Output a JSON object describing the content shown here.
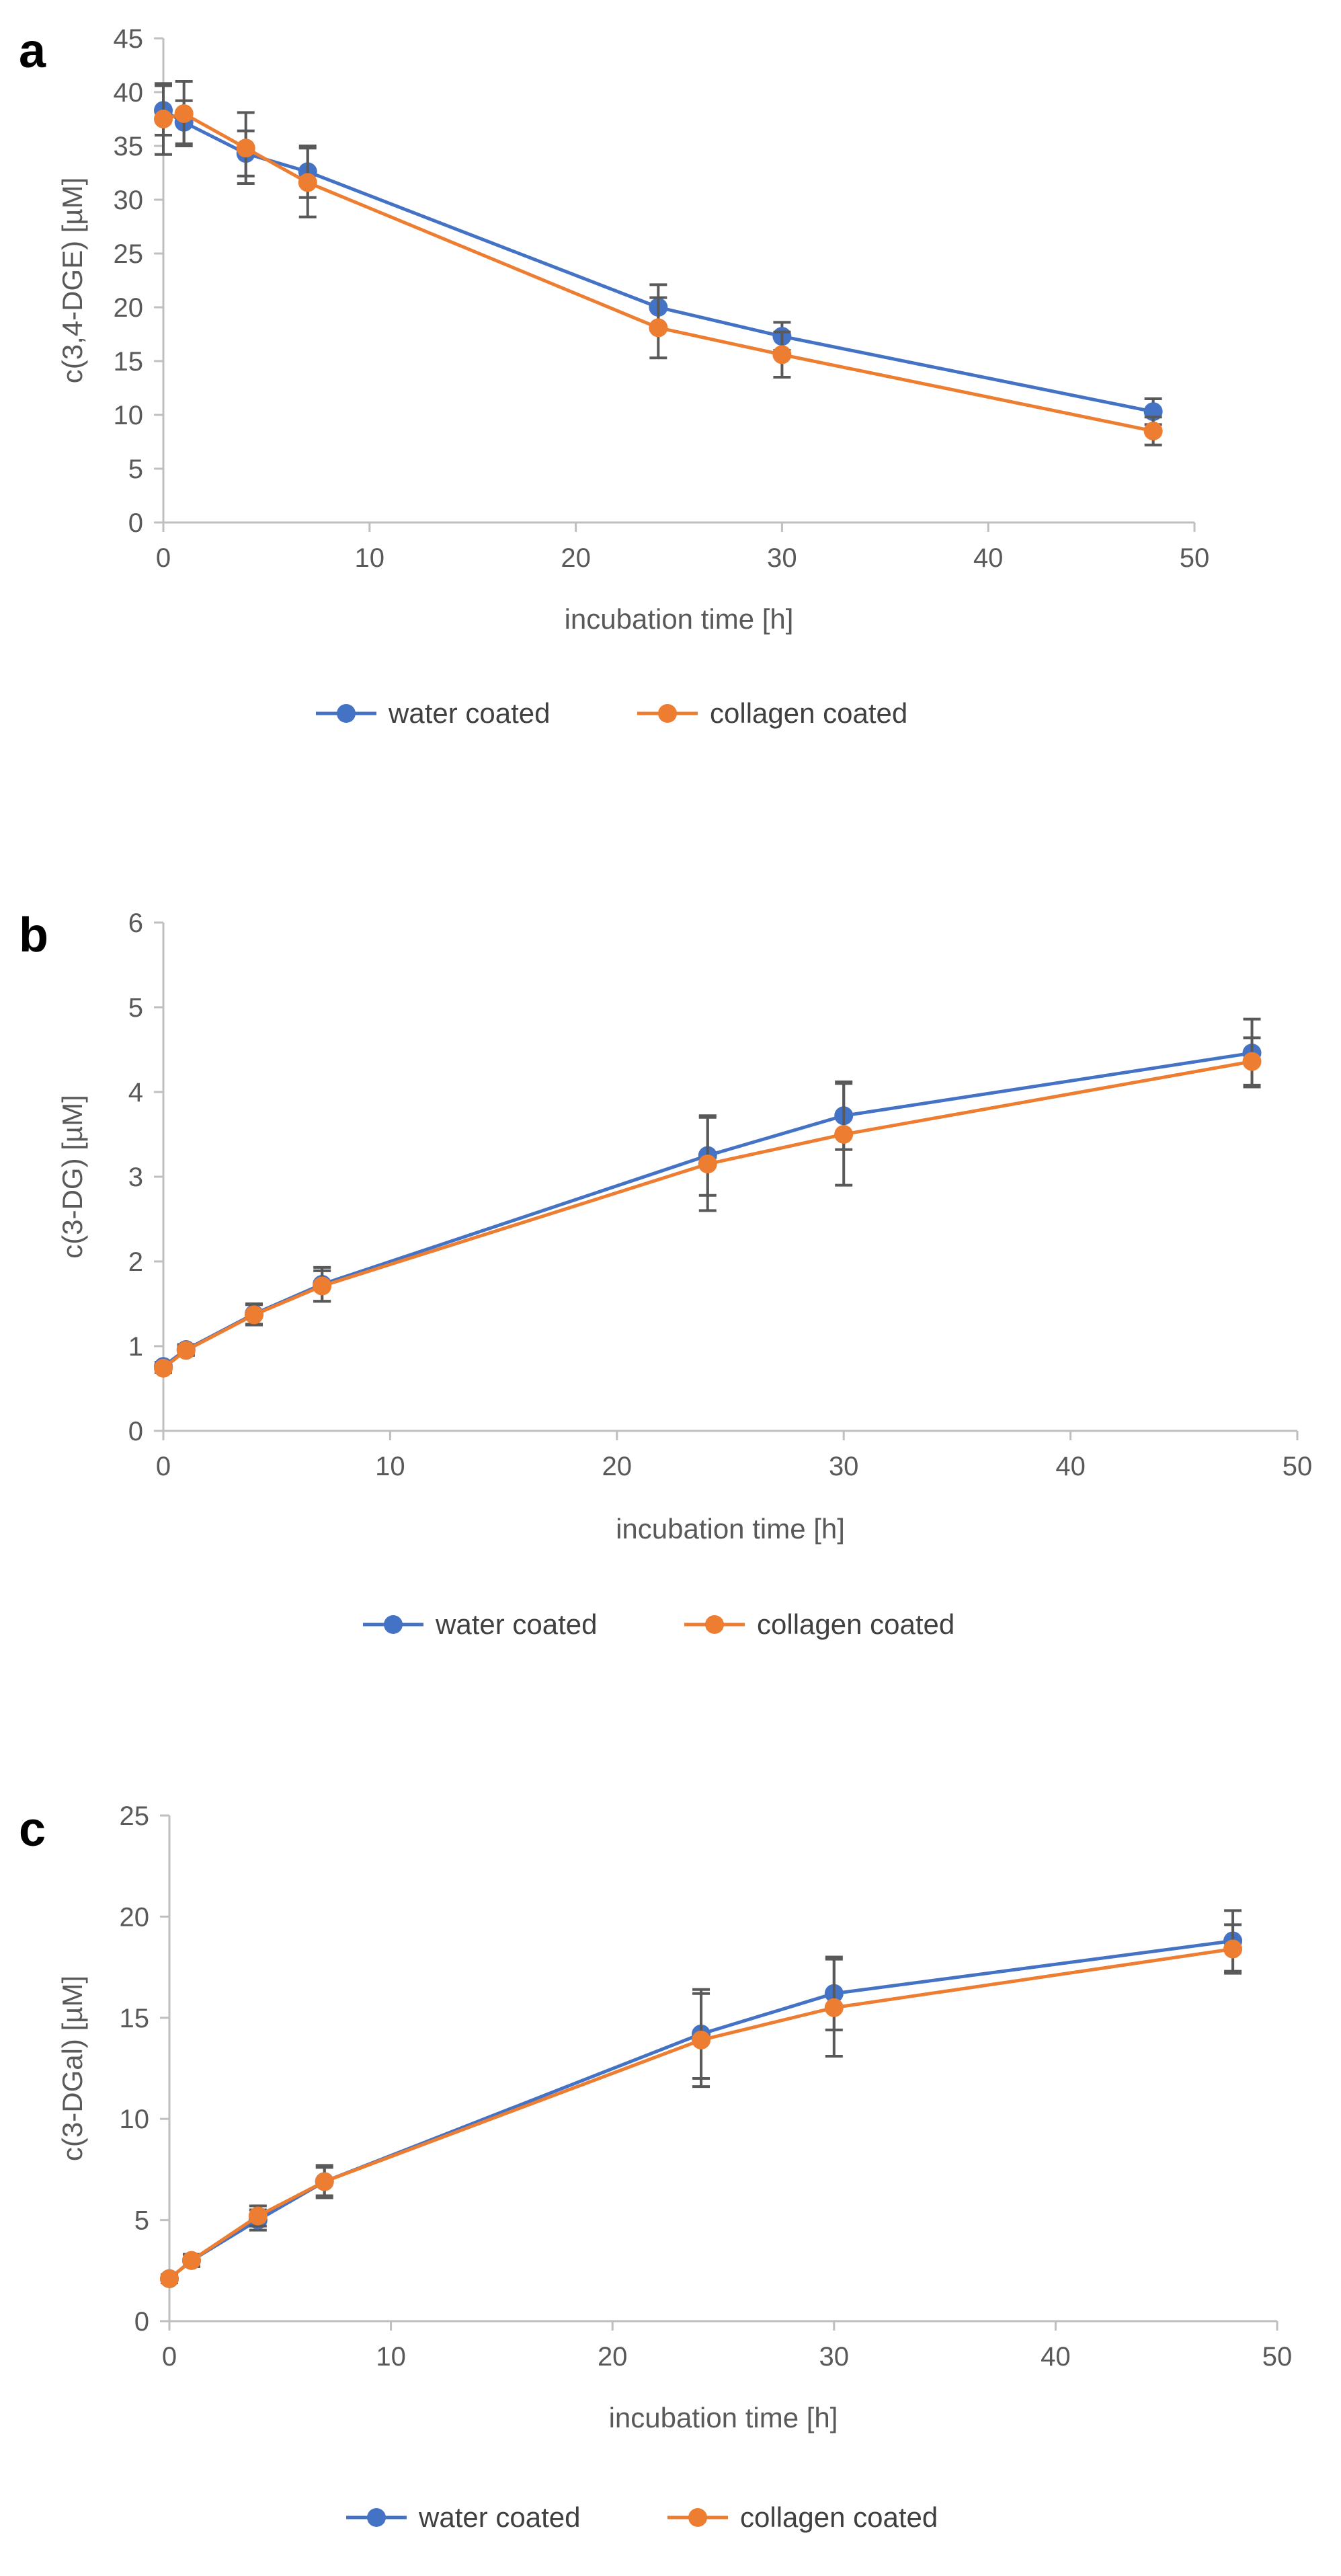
{
  "chart_data": [
    {
      "type": "line",
      "panel_label": "a",
      "x": [
        0,
        1,
        4,
        7,
        24,
        30,
        48
      ],
      "xlabel": "incubation time [h]",
      "ylabel": "c(3,4-DGE) [µM]",
      "xlim": [
        0,
        50
      ],
      "ylim": [
        0,
        45
      ],
      "xticks": [
        "0",
        "10",
        "20",
        "30",
        "40",
        "50"
      ],
      "yticks": [
        "0",
        "5",
        "10",
        "15",
        "20",
        "25",
        "30",
        "35",
        "40",
        "45"
      ],
      "grid": false,
      "legend": "bottom",
      "series": [
        {
          "name": "water coated",
          "color": "#4472C4",
          "values": [
            38.3,
            37.2,
            34.3,
            32.6,
            20.0,
            17.3,
            10.3
          ],
          "errors": [
            2.3,
            2.0,
            2.1,
            2.4,
            2.1,
            1.3,
            1.2
          ]
        },
        {
          "name": "collagen coated",
          "color": "#ED7D31",
          "values": [
            37.5,
            38.0,
            34.8,
            31.6,
            18.1,
            15.6,
            8.5
          ],
          "errors": [
            3.3,
            3.0,
            3.3,
            3.2,
            2.8,
            2.1,
            1.3
          ]
        }
      ]
    },
    {
      "type": "line",
      "panel_label": "b",
      "x": [
        0,
        1,
        4,
        7,
        24,
        30,
        48
      ],
      "xlabel": "incubation time [h]",
      "ylabel": "c(3-DG) [µM]",
      "xlim": [
        0,
        50
      ],
      "ylim": [
        0,
        6
      ],
      "xticks": [
        "0",
        "10",
        "20",
        "30",
        "40",
        "50"
      ],
      "yticks": [
        "0",
        "1",
        "2",
        "3",
        "4",
        "5",
        "6"
      ],
      "grid": false,
      "legend": "bottom",
      "series": [
        {
          "name": "water coated",
          "color": "#4472C4",
          "values": [
            0.76,
            0.96,
            1.38,
            1.73,
            3.25,
            3.72,
            4.46
          ],
          "errors": [
            0.05,
            0.06,
            0.12,
            0.2,
            0.47,
            0.4,
            0.4
          ]
        },
        {
          "name": "collagen coated",
          "color": "#ED7D31",
          "values": [
            0.74,
            0.95,
            1.37,
            1.71,
            3.15,
            3.5,
            4.36
          ],
          "errors": [
            0.05,
            0.06,
            0.12,
            0.18,
            0.55,
            0.6,
            0.28
          ]
        }
      ]
    },
    {
      "type": "line",
      "panel_label": "c",
      "x": [
        0,
        1,
        4,
        7,
        24,
        30,
        48
      ],
      "xlabel": "incubation time [h]",
      "ylabel": "c(3-DGal) [µM]",
      "xlim": [
        0,
        50
      ],
      "ylim": [
        0,
        25
      ],
      "xticks": [
        "0",
        "10",
        "20",
        "30",
        "40",
        "50"
      ],
      "yticks": [
        "0",
        "5",
        "10",
        "15",
        "20",
        "25"
      ],
      "grid": false,
      "legend": "bottom",
      "series": [
        {
          "name": "water coated",
          "color": "#4472C4",
          "values": [
            2.1,
            3.0,
            5.0,
            6.9,
            14.2,
            16.2,
            18.8
          ],
          "errors": [
            0.2,
            0.3,
            0.5,
            0.8,
            2.2,
            1.8,
            1.5
          ]
        },
        {
          "name": "collagen coated",
          "color": "#ED7D31",
          "values": [
            2.1,
            3.0,
            5.2,
            6.9,
            13.9,
            15.5,
            18.4
          ],
          "errors": [
            0.2,
            0.3,
            0.5,
            0.7,
            2.3,
            2.4,
            1.2
          ]
        }
      ]
    }
  ]
}
